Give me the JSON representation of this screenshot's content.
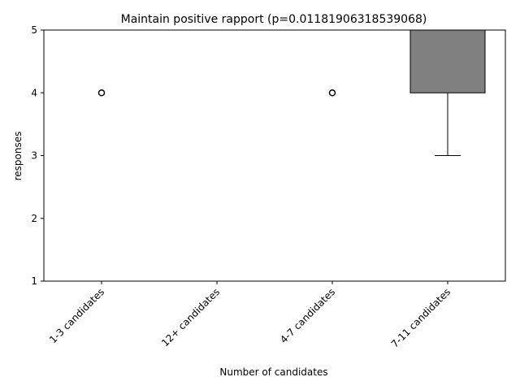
{
  "chart_data": {
    "type": "box",
    "title": "Maintain positive rapport (p=0.01181906318539068)",
    "xlabel": "Number of candidates",
    "ylabel": "responses",
    "ylim": [
      1,
      5
    ],
    "yticks": [
      1,
      2,
      3,
      4,
      5
    ],
    "grid": false,
    "box_color": "#808080",
    "categories": [
      "1-3 candidates",
      "12+ candidates",
      "4-7 candidates",
      "7-11 candidates"
    ],
    "boxes": [
      {
        "category": "1-3 candidates",
        "whisker_low": 5,
        "q1": 5,
        "median": 5,
        "q3": 5,
        "whisker_high": 5,
        "outliers": [
          4
        ]
      },
      {
        "category": "12+ candidates",
        "whisker_low": 5,
        "q1": 5,
        "median": 5,
        "q3": 5,
        "whisker_high": 5,
        "outliers": []
      },
      {
        "category": "4-7 candidates",
        "whisker_low": 5,
        "q1": 5,
        "median": 5,
        "q3": 5,
        "whisker_high": 5,
        "outliers": [
          4
        ]
      },
      {
        "category": "7-11 candidates",
        "whisker_low": 3,
        "q1": 4,
        "median": 5,
        "q3": 5,
        "whisker_high": 5,
        "outliers": []
      }
    ]
  }
}
